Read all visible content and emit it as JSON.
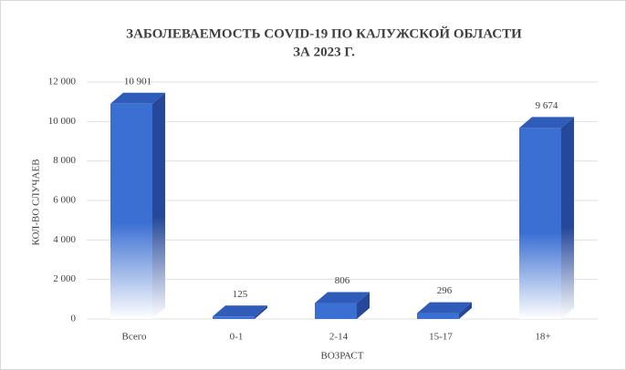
{
  "chart_data": {
    "type": "bar3d",
    "title": [
      "ЗАБОЛЕВАЕМОСТЬ COVID-19 ПО КАЛУЖСКОЙ ОБЛАСТИ",
      "ЗА 2023 Г."
    ],
    "x_label": "ВОЗРАСТ",
    "y_label": "КОЛ-ВО СЛУЧАЕВ",
    "categories": [
      "Всего",
      "0-1",
      "2-14",
      "15-17",
      "18+"
    ],
    "values": [
      10901,
      125,
      806,
      296,
      9674
    ],
    "value_labels": [
      "10 901",
      "125",
      "806",
      "296",
      "9 674"
    ],
    "color": "#3b6fd2",
    "side_color": "#27489a",
    "top_color": "#2f5cb8",
    "ylim": [
      0,
      12000
    ],
    "yticks": [
      0,
      {
        "value": 2000,
        "label": "2 000"
      },
      {
        "value": 4000,
        "label": "4 000"
      },
      {
        "value": 6000,
        "label": "6 000"
      },
      {
        "value": 8000,
        "label": "8 000"
      },
      {
        "value": 10000,
        "label": "10 000"
      },
      {
        "value": 12000,
        "label": "12 000"
      }
    ],
    "grid": true
  }
}
